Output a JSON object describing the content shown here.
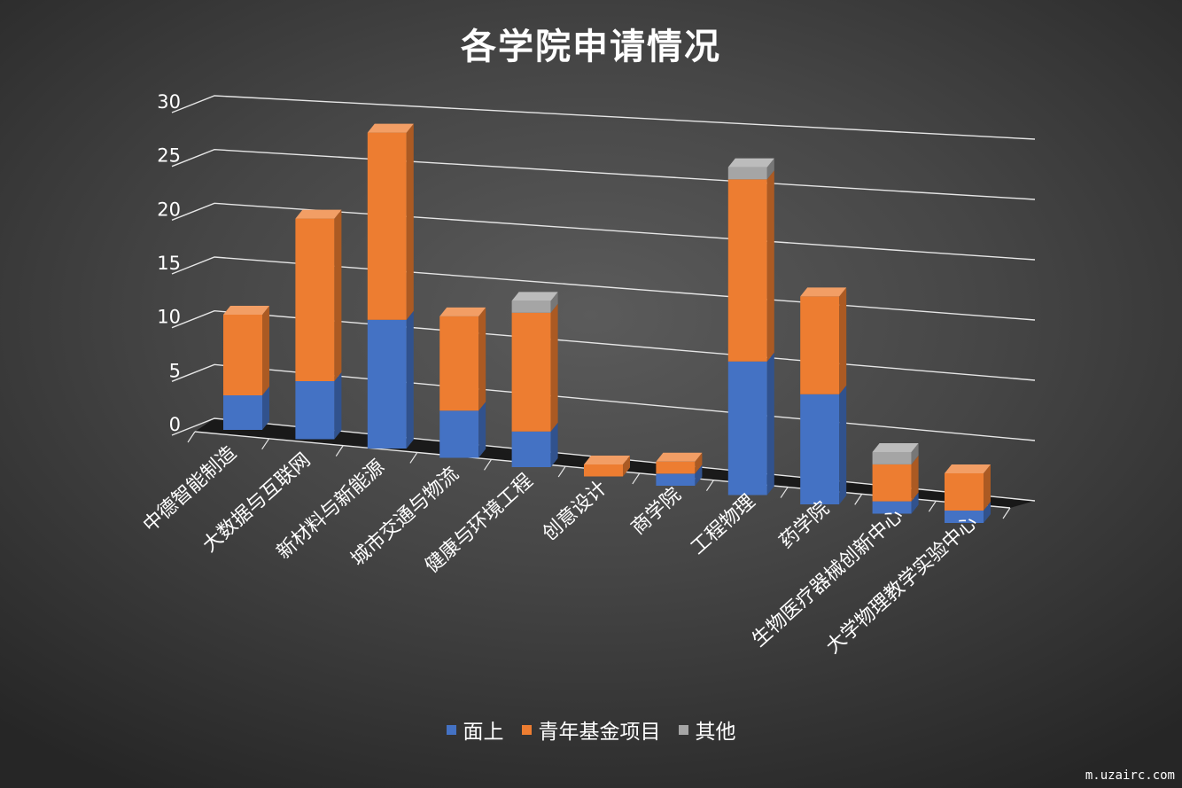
{
  "chart_data": {
    "type": "bar",
    "stacked": true,
    "three_d": true,
    "title": "各学院申请情况",
    "categories": [
      "中德智能制造",
      "大数据与互联网",
      "新材料与新能源",
      "城市交通与物流",
      "健康与环境工程",
      "创意设计",
      "商学院",
      "工程物理",
      "药学院",
      "生物医疗器械创新中心",
      "大学物理教学实验中心"
    ],
    "series": [
      {
        "name": "面上",
        "color": "#4472c4",
        "values": [
          3,
          5,
          11,
          4,
          3,
          0,
          1,
          11,
          9,
          1,
          1
        ]
      },
      {
        "name": "青年基金项目",
        "color": "#ed7d31",
        "values": [
          7,
          14,
          16,
          8,
          10,
          1,
          1,
          15,
          8,
          3,
          3
        ]
      },
      {
        "name": "其他",
        "color": "#a5a5a5",
        "values": [
          0,
          0,
          0,
          0,
          1,
          0,
          0,
          1,
          0,
          1,
          0
        ]
      }
    ],
    "yticks": [
      "0",
      "5",
      "10",
      "15",
      "20",
      "25",
      "30"
    ],
    "ylim": [
      0,
      30
    ],
    "grid": true,
    "legend_position": "bottom"
  },
  "watermark": "m.uzairc.com"
}
